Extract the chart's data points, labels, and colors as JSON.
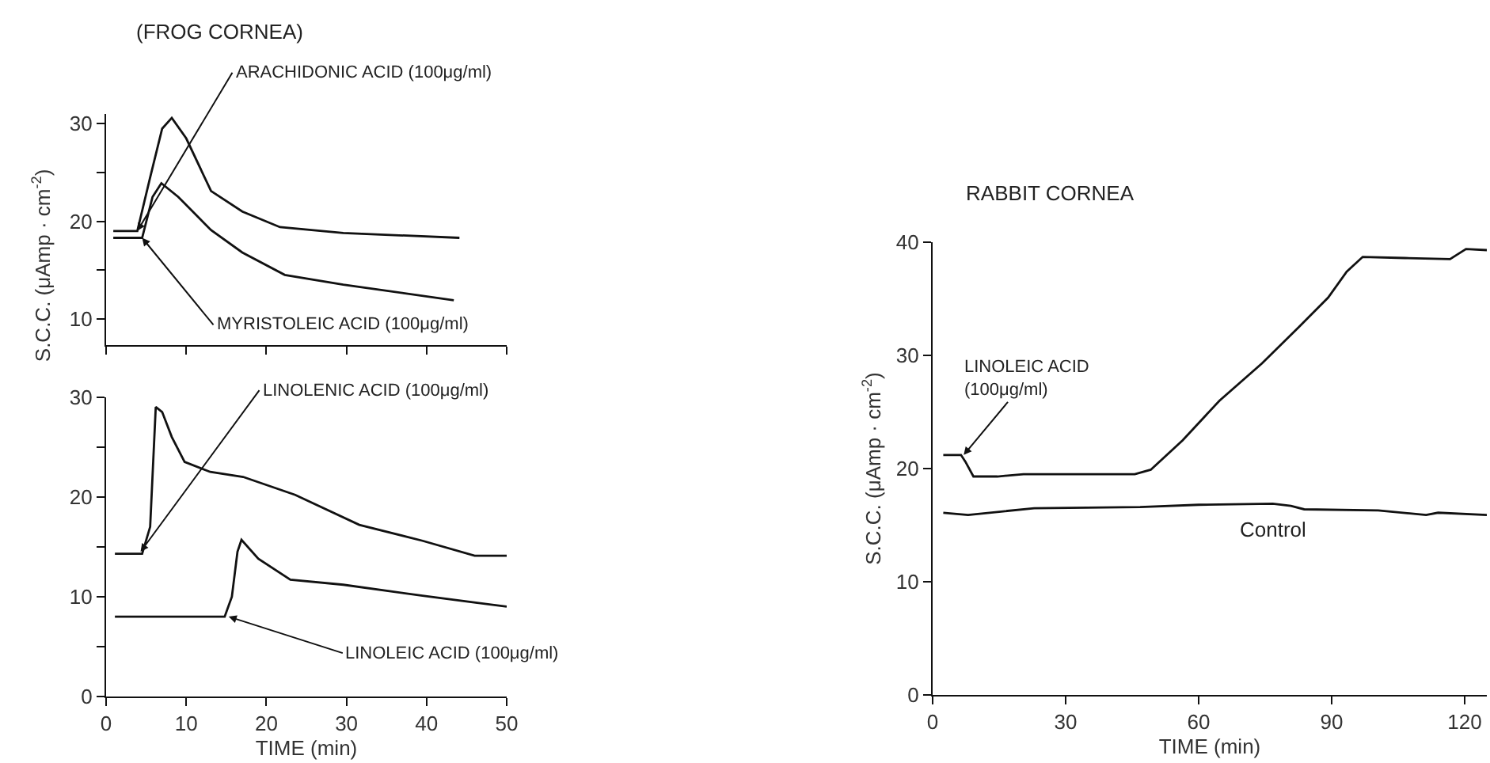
{
  "chart_data": [
    {
      "type": "line",
      "title": "(FROG CORNEA)",
      "xlim": [
        0,
        50
      ],
      "xticks": [
        {
          "value": 0,
          "label": null
        },
        {
          "value": 10,
          "label": null
        },
        {
          "value": 20,
          "label": null
        },
        {
          "value": 30,
          "label": null
        },
        {
          "value": 40,
          "label": null
        },
        {
          "value": 50,
          "label": null
        }
      ],
      "ylim": [
        7.3,
        31
      ],
      "yticks": [
        10,
        {
          "value": 15,
          "label": null
        },
        20,
        {
          "value": 25,
          "label": null
        },
        30
      ],
      "tick_labels": "y",
      "grid": false,
      "legend": false,
      "series": [
        {
          "color": "#111111",
          "x": [
            0.9,
            3.9,
            5.5,
            7,
            8.2,
            10,
            13.1,
            17,
            21.7,
            29.6,
            44.1
          ],
          "values": [
            19.0,
            19.0,
            24.5,
            29.5,
            30.6,
            28.5,
            23.1,
            21,
            19.4,
            18.8,
            18.3
          ]
        },
        {
          "color": "#111111",
          "x": [
            0.9,
            4.5,
            5.8,
            6.9,
            9,
            13.1,
            17,
            22.3,
            29.6,
            43.4
          ],
          "values": [
            18.3,
            18.3,
            22.5,
            23.9,
            22.5,
            19.1,
            16.8,
            14.5,
            13.5,
            11.9
          ]
        }
      ],
      "annotations": [
        {
          "text": "ARACHIDONIC ACID (100μg/ml)",
          "x": 3.9,
          "y": 19.0
        },
        {
          "text": "MYRISTOLEIC ACID (100μg/ml)",
          "x": 4.5,
          "y": 18.3
        }
      ]
    },
    {
      "type": "line",
      "xlabel": "TIME (min)",
      "ylabel": "S.C.C. (μAmp · cm$^{-2}$)",
      "xlim": [
        0,
        50
      ],
      "xticks": [
        0,
        10,
        20,
        30,
        40,
        50
      ],
      "ylim": [
        0,
        30
      ],
      "yticks": [
        0,
        {
          "value": 5,
          "label": null
        },
        10,
        {
          "value": 15,
          "label": null
        },
        20,
        {
          "value": 25,
          "label": null
        },
        30
      ],
      "grid": false,
      "legend": false,
      "series": [
        {
          "color": "#111111",
          "x": [
            1.1,
            4.5,
            5.5,
            6.2,
            7,
            8.2,
            9.8,
            13,
            17.1,
            23.6,
            31.6,
            39.5,
            46,
            50
          ],
          "values": [
            14.3,
            14.3,
            17,
            29.0,
            28.5,
            26,
            23.5,
            22.5,
            22.0,
            20.2,
            17.2,
            15.6,
            14.1,
            14.1
          ]
        },
        {
          "color": "#111111",
          "x": [
            1.1,
            14.8,
            15.7,
            16.4,
            16.9,
            19,
            23,
            29.6,
            39.5,
            50
          ],
          "values": [
            8.0,
            8.0,
            10,
            14.5,
            15.7,
            13.8,
            11.7,
            11.2,
            10.1,
            9.0
          ]
        }
      ],
      "annotations": [
        {
          "text": "LINOLENIC ACID (100μg/ml)",
          "x": 4.3,
          "y": 14.5
        },
        {
          "text": "LINOLEIC ACID (100μg/ml)",
          "x": 15.3,
          "y": 8.0
        }
      ]
    },
    {
      "type": "line",
      "title": "RABBIT CORNEA",
      "xlabel": "TIME (min)",
      "ylabel": "S.C.C. (μAmp · cm$^{-2}$)",
      "xlim": [
        0,
        125
      ],
      "xticks": [
        0,
        30,
        60,
        90,
        120
      ],
      "ylim": [
        0,
        40
      ],
      "yticks": [
        0,
        10,
        20,
        30,
        40
      ],
      "grid": false,
      "legend": false,
      "series": [
        {
          "color": "#111111",
          "x": [
            2.4,
            6.4,
            7.4,
            9.2,
            14.6,
            20.5,
            34.9,
            45.6,
            49.2,
            56.4,
            64.7,
            74.3,
            82.6,
            89.2,
            93.4,
            97,
            106.5,
            116.7,
            117.9,
            120.3,
            125
          ],
          "values": [
            21.2,
            21.2,
            20.6,
            19.3,
            19.3,
            19.5,
            19.5,
            19.5,
            19.9,
            22.5,
            26.0,
            29.3,
            32.5,
            35.1,
            37.4,
            38.7,
            38.6,
            38.5,
            38.8,
            39.4,
            39.3
          ]
        },
        {
          "name": "Control",
          "color": "#111111",
          "x": [
            2.4,
            8,
            22.9,
            46.8,
            60,
            76.7,
            80.8,
            83.8,
            100.5,
            111.3,
            114,
            125
          ],
          "values": [
            16.1,
            15.9,
            16.5,
            16.6,
            16.8,
            16.9,
            16.7,
            16.4,
            16.3,
            15.9,
            16.1,
            15.9
          ]
        }
      ],
      "annotations": [
        {
          "text": "LINOLEIC ACID\n(100μg/ml)",
          "x": 7.0,
          "y": 21.2
        }
      ]
    }
  ]
}
